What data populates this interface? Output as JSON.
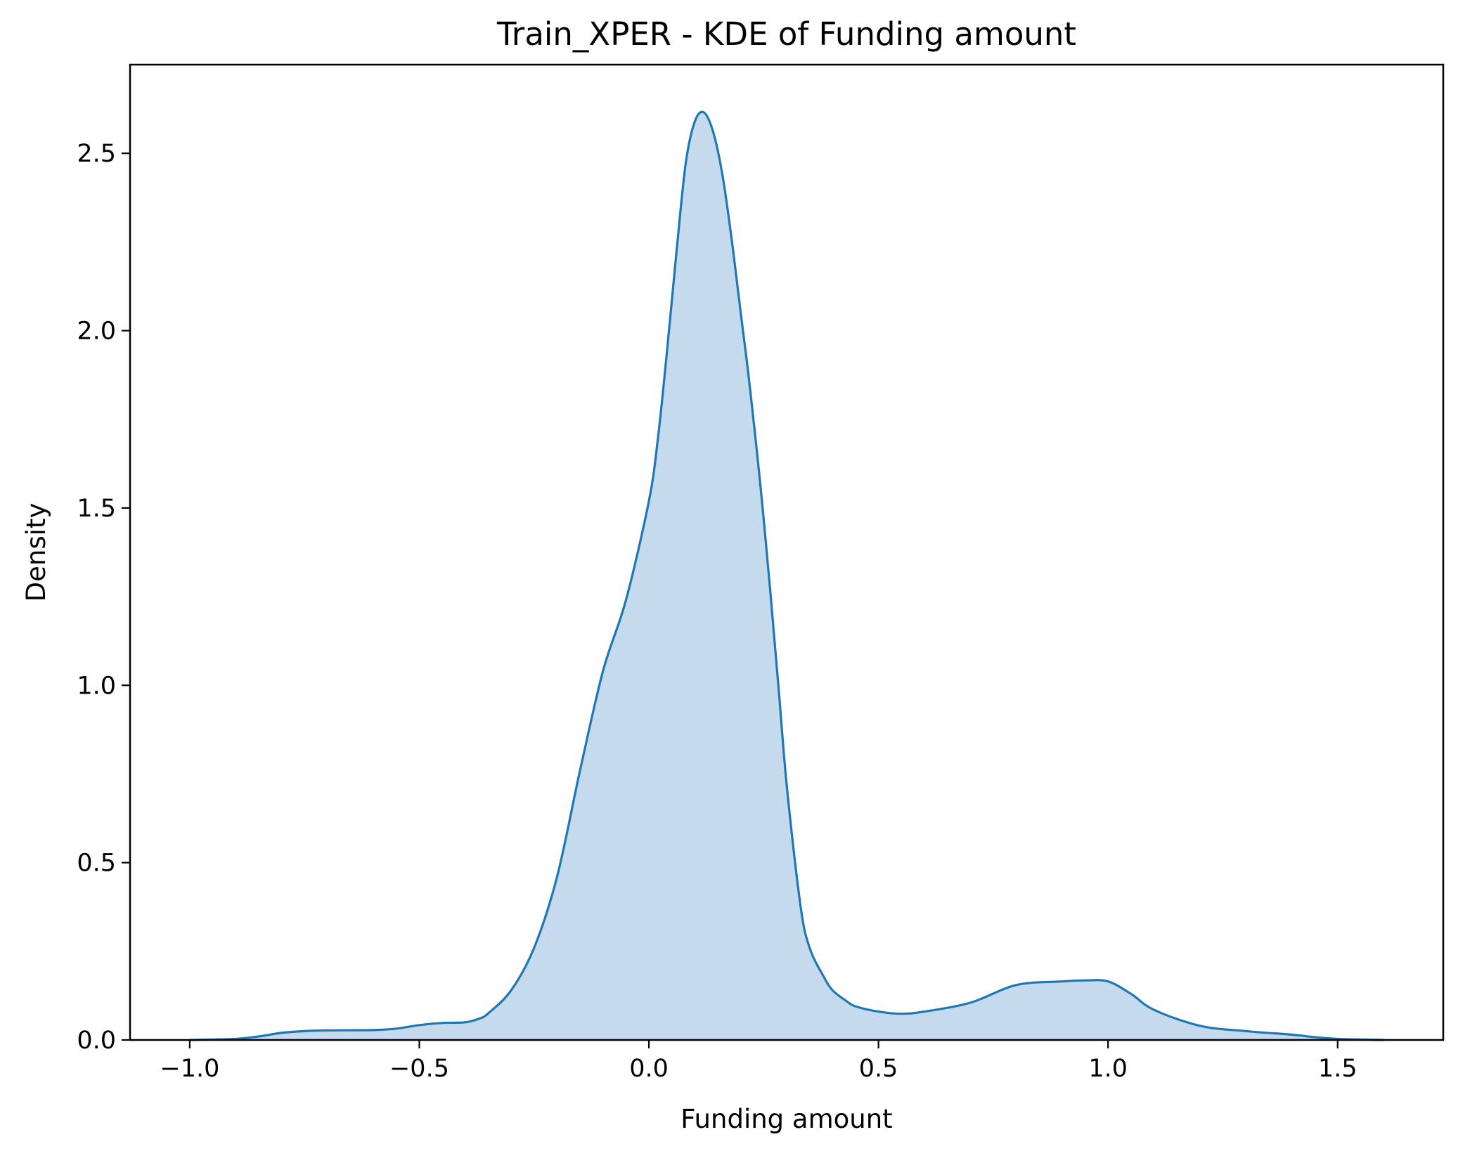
{
  "chart_data": {
    "type": "area",
    "title": "Train_XPER - KDE of Funding amount",
    "xlabel": "Funding amount",
    "ylabel": "Density",
    "xlim": [
      -1.13,
      1.73
    ],
    "ylim": [
      0,
      2.75
    ],
    "xticks": [
      -1.0,
      -0.5,
      0.0,
      0.5,
      1.0,
      1.5
    ],
    "xtick_labels": [
      "−1.0",
      "−0.5",
      "0.0",
      "0.5",
      "1.0",
      "1.5"
    ],
    "yticks": [
      0.0,
      0.5,
      1.0,
      1.5,
      2.0,
      2.5
    ],
    "ytick_labels": [
      "0.0",
      "0.5",
      "1.0",
      "1.5",
      "2.0",
      "2.5"
    ],
    "grid": false,
    "colors": {
      "line": "#1f77b4",
      "fill": "#c5dbed"
    },
    "series": [
      {
        "x": [
          -1.0,
          -0.9,
          -0.85,
          -0.8,
          -0.75,
          -0.7,
          -0.6,
          -0.55,
          -0.5,
          -0.45,
          -0.4,
          -0.37,
          -0.35,
          -0.3,
          -0.25,
          -0.2,
          -0.15,
          -0.1,
          -0.05,
          0.0,
          0.02,
          0.04,
          0.06,
          0.08,
          0.1,
          0.12,
          0.14,
          0.16,
          0.18,
          0.2,
          0.22,
          0.25,
          0.28,
          0.3,
          0.33,
          0.35,
          0.38,
          0.4,
          0.43,
          0.45,
          0.5,
          0.55,
          0.6,
          0.7,
          0.8,
          0.9,
          0.95,
          1.0,
          1.05,
          1.1,
          1.2,
          1.3,
          1.4,
          1.45,
          1.5,
          1.6
        ],
        "y": [
          0.0,
          0.003,
          0.01,
          0.02,
          0.025,
          0.027,
          0.028,
          0.032,
          0.042,
          0.048,
          0.05,
          0.06,
          0.075,
          0.14,
          0.26,
          0.46,
          0.76,
          1.04,
          1.24,
          1.52,
          1.7,
          1.95,
          2.22,
          2.47,
          2.59,
          2.615,
          2.56,
          2.44,
          2.26,
          2.05,
          1.84,
          1.47,
          1.03,
          0.72,
          0.38,
          0.26,
          0.18,
          0.14,
          0.11,
          0.095,
          0.08,
          0.074,
          0.08,
          0.105,
          0.155,
          0.165,
          0.168,
          0.165,
          0.13,
          0.085,
          0.04,
          0.025,
          0.015,
          0.008,
          0.003,
          0.0
        ]
      }
    ]
  }
}
